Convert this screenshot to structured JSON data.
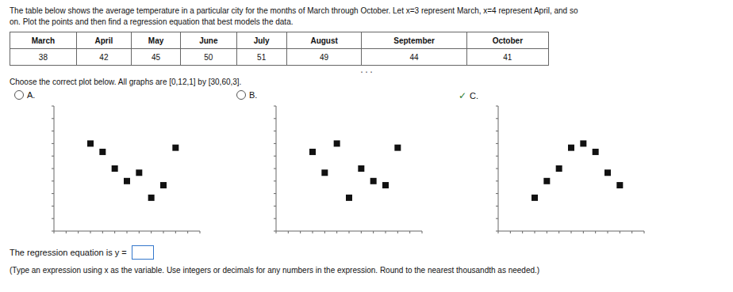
{
  "title": "The table below shows the average temperature in a particular city for the months of March through October. Let x=3 represent March, x=4 represent April, and so",
  "subtitle": "on. Plot the points and then find a regression equation that best models the data.",
  "table": {
    "headers": [
      "March",
      "April",
      "May",
      "June",
      "July",
      "August",
      "September",
      "October"
    ],
    "values": [
      38,
      42,
      45,
      50,
      51,
      49,
      44,
      41
    ]
  },
  "separator": "...",
  "choose_text": "Choose the correct plot below. All graphs are [0,12,1] by [30,60,3].",
  "regression_text": "The regression equation is y =",
  "note_text": "(Type an expression using x as the variable. Use integers or decimals for any numbers in the expression. Round to the nearest thousandth as needed.)",
  "chart_data": [
    {
      "type": "scatter",
      "title": "A.",
      "x": [
        3,
        4,
        5,
        6,
        7,
        8,
        9,
        10
      ],
      "values": [
        51,
        49,
        45,
        42,
        44,
        38,
        41,
        50
      ],
      "color": "#111111",
      "marker": "square",
      "xlim": [
        0,
        12
      ],
      "ylim": [
        30,
        60
      ],
      "xticks": [
        0,
        1,
        2,
        3,
        4,
        5,
        6,
        7,
        8,
        9,
        10,
        11,
        12
      ],
      "yticks": [
        30,
        33,
        36,
        39,
        42,
        45,
        48,
        51,
        54,
        57,
        60
      ],
      "tick_labels": false,
      "grid": false
    },
    {
      "type": "scatter",
      "title": "B.",
      "x": [
        3,
        4,
        5,
        6,
        7,
        8,
        9,
        10
      ],
      "values": [
        49,
        44,
        51,
        38,
        45,
        42,
        41,
        50
      ],
      "color": "#111111",
      "marker": "square",
      "xlim": [
        0,
        12
      ],
      "ylim": [
        30,
        60
      ],
      "xticks": [
        0,
        1,
        2,
        3,
        4,
        5,
        6,
        7,
        8,
        9,
        10,
        11,
        12
      ],
      "yticks": [
        30,
        33,
        36,
        39,
        42,
        45,
        48,
        51,
        54,
        57,
        60
      ],
      "tick_labels": false,
      "grid": false
    },
    {
      "type": "scatter",
      "title": "C.",
      "annotations": [
        {
          "text": "✓",
          "color": "#2a7a2a"
        }
      ],
      "x": [
        3,
        4,
        5,
        6,
        7,
        8,
        9,
        10
      ],
      "values": [
        38,
        42,
        45,
        50,
        51,
        49,
        44,
        41
      ],
      "color": "#111111",
      "marker": "square",
      "xlim": [
        0,
        12
      ],
      "ylim": [
        30,
        60
      ],
      "xticks": [
        0,
        1,
        2,
        3,
        4,
        5,
        6,
        7,
        8,
        9,
        10,
        11,
        12
      ],
      "yticks": [
        30,
        33,
        36,
        39,
        42,
        45,
        48,
        51,
        54,
        57,
        60
      ],
      "tick_labels": false,
      "grid": false
    }
  ]
}
